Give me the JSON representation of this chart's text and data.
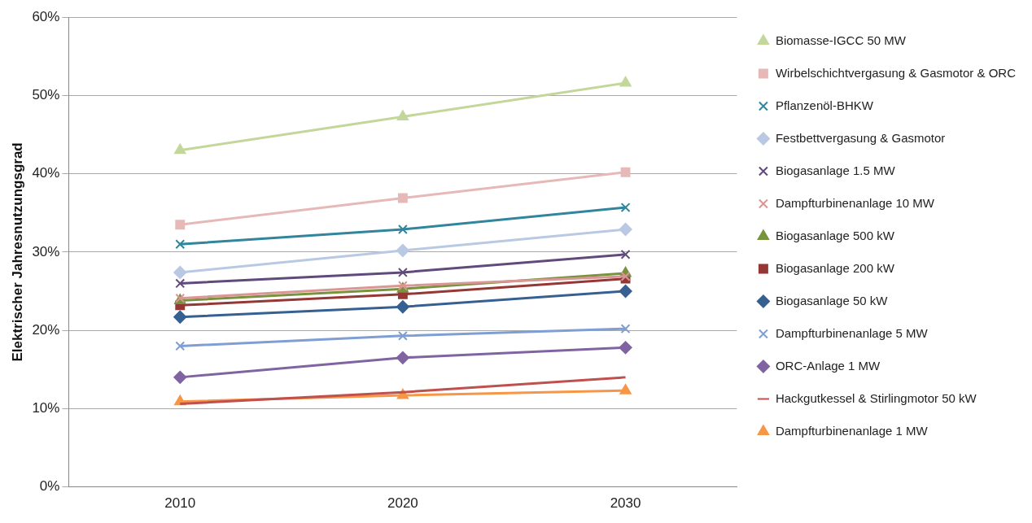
{
  "chart_data": {
    "type": "line",
    "ylabel": "Elektrischer Jahresnutzungsgrad",
    "categories": [
      "2010",
      "2020",
      "2030"
    ],
    "ylim": [
      0,
      60
    ],
    "yticks": [
      {
        "value": 0,
        "label": "0%"
      },
      {
        "value": 10,
        "label": "10%"
      },
      {
        "value": 20,
        "label": "20%"
      },
      {
        "value": 30,
        "label": "30%"
      },
      {
        "value": 40,
        "label": "40%"
      },
      {
        "value": 50,
        "label": "50%"
      },
      {
        "value": 60,
        "label": "60%"
      }
    ],
    "grid": "y",
    "legend": "right",
    "line_style": "solid",
    "series": [
      {
        "name": "Biomasse-IGCC 50 MW",
        "color": "#c4d79b",
        "marker": "triangle",
        "values": [
          43,
          47.3,
          51.6
        ]
      },
      {
        "name": "Wirbelschichtvergasung & Gasmotor & ORC",
        "color": "#e6b9b8",
        "marker": "square",
        "values": [
          33.5,
          36.9,
          40.2
        ]
      },
      {
        "name": "Pflanzenöl-BHKW",
        "color": "#31859c",
        "marker": "cross",
        "values": [
          31,
          32.9,
          35.7
        ]
      },
      {
        "name": "Festbettvergasung & Gasmotor",
        "color": "#b9c9e3",
        "marker": "diamond",
        "values": [
          27.4,
          30.2,
          32.9
        ]
      },
      {
        "name": "Biogasanlage 1.5 MW",
        "color": "#604a7b",
        "marker": "cross",
        "values": [
          26,
          27.4,
          29.7
        ]
      },
      {
        "name": "Dampfturbinenanlage 10 MW",
        "color": "#da9694",
        "marker": "cross",
        "values": [
          24.1,
          25.7,
          26.9
        ]
      },
      {
        "name": "Biogasanlage 500 kW",
        "color": "#77933c",
        "marker": "triangle",
        "values": [
          23.8,
          25.3,
          27.3
        ]
      },
      {
        "name": "Biogasanlage 200 kW",
        "color": "#953735",
        "marker": "square",
        "values": [
          23.2,
          24.6,
          26.6
        ]
      },
      {
        "name": "Biogasanlage 50 kW",
        "color": "#376092",
        "marker": "diamond",
        "values": [
          21.7,
          23,
          25
        ]
      },
      {
        "name": "Dampfturbinenanlage 5 MW",
        "color": "#7f9fd4",
        "marker": "cross",
        "values": [
          18,
          19.3,
          20.2
        ]
      },
      {
        "name": "ORC-Anlage 1 MW",
        "color": "#8064a2",
        "marker": "diamond",
        "values": [
          14,
          16.5,
          17.8
        ]
      },
      {
        "name": "Hackgutkessel & Stirlingmotor 50 kW",
        "color": "#c0504d",
        "marker": "none",
        "values": [
          10.6,
          12.1,
          14
        ]
      },
      {
        "name": "Dampfturbinenanlage 1 MW",
        "color": "#f79646",
        "marker": "triangle",
        "values": [
          10.9,
          11.7,
          12.3
        ]
      }
    ]
  }
}
